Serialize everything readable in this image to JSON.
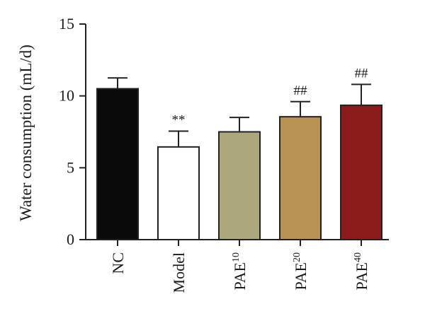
{
  "chart_data": {
    "type": "bar",
    "title": "",
    "xlabel": "",
    "ylabel": "Water consumption (mL/d)",
    "ylim": [
      0,
      15
    ],
    "yticks": [
      0,
      5,
      10,
      15
    ],
    "grid": false,
    "categories": [
      {
        "base": "NC",
        "sup": ""
      },
      {
        "base": "Model",
        "sup": ""
      },
      {
        "base": "PAE",
        "sup": "10"
      },
      {
        "base": "PAE",
        "sup": "20"
      },
      {
        "base": "PAE",
        "sup": "40"
      }
    ],
    "values": [
      10.5,
      6.45,
      7.5,
      8.55,
      9.35
    ],
    "error": [
      0.75,
      1.1,
      1.0,
      1.05,
      1.45
    ],
    "annotations": [
      "",
      "**",
      "",
      "##",
      "##"
    ],
    "colors": [
      "#0a0a0a",
      "#ffffff",
      "#ada77c",
      "#b89353",
      "#8b1a1a"
    ]
  }
}
